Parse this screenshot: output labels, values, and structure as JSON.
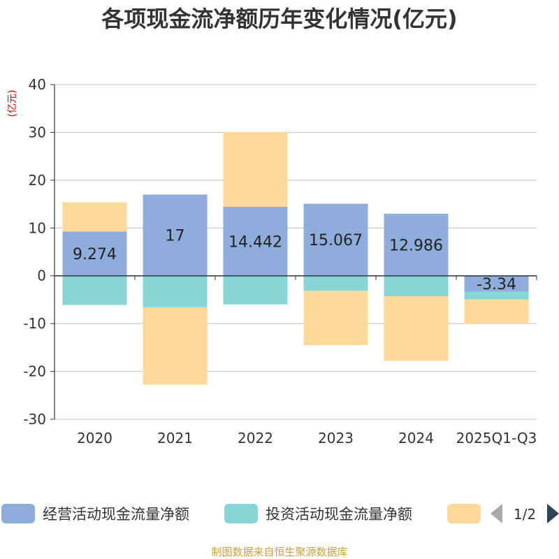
{
  "chart_data": {
    "type": "bar",
    "stacked": true,
    "title": "各项现金流净额历年变化情况(亿元)",
    "ylabel": "(亿元)",
    "xlabel": "",
    "ylim": [
      -30,
      40
    ],
    "yticks": [
      40,
      30,
      20,
      10,
      0,
      -10,
      -20,
      -30
    ],
    "grid": true,
    "categories": [
      "2020",
      "2021",
      "2022",
      "2023",
      "2024",
      "2025Q1-Q3"
    ],
    "series": [
      {
        "name": "经营活动现金流量净额",
        "color": "#8eaddb",
        "values": [
          9.274,
          17,
          14.442,
          15.067,
          12.986,
          -3.34
        ],
        "labels": [
          "9.274",
          "17",
          "14.442",
          "15.067",
          "12.986",
          "-3.34"
        ]
      },
      {
        "name": "投资活动现金流量净额",
        "color": "#86d6d8",
        "values": [
          -6.1,
          -6.6,
          -6.0,
          -3.1,
          -4.3,
          -1.6
        ]
      },
      {
        "name": "",
        "color": "#ffd999",
        "values": [
          6.1,
          -16.2,
          15.6,
          -11.4,
          -13.5,
          -5.1
        ]
      }
    ],
    "legend_position": "bottom",
    "legend_page": "1/2",
    "source": "制图数据来自恒生聚源数据库"
  }
}
